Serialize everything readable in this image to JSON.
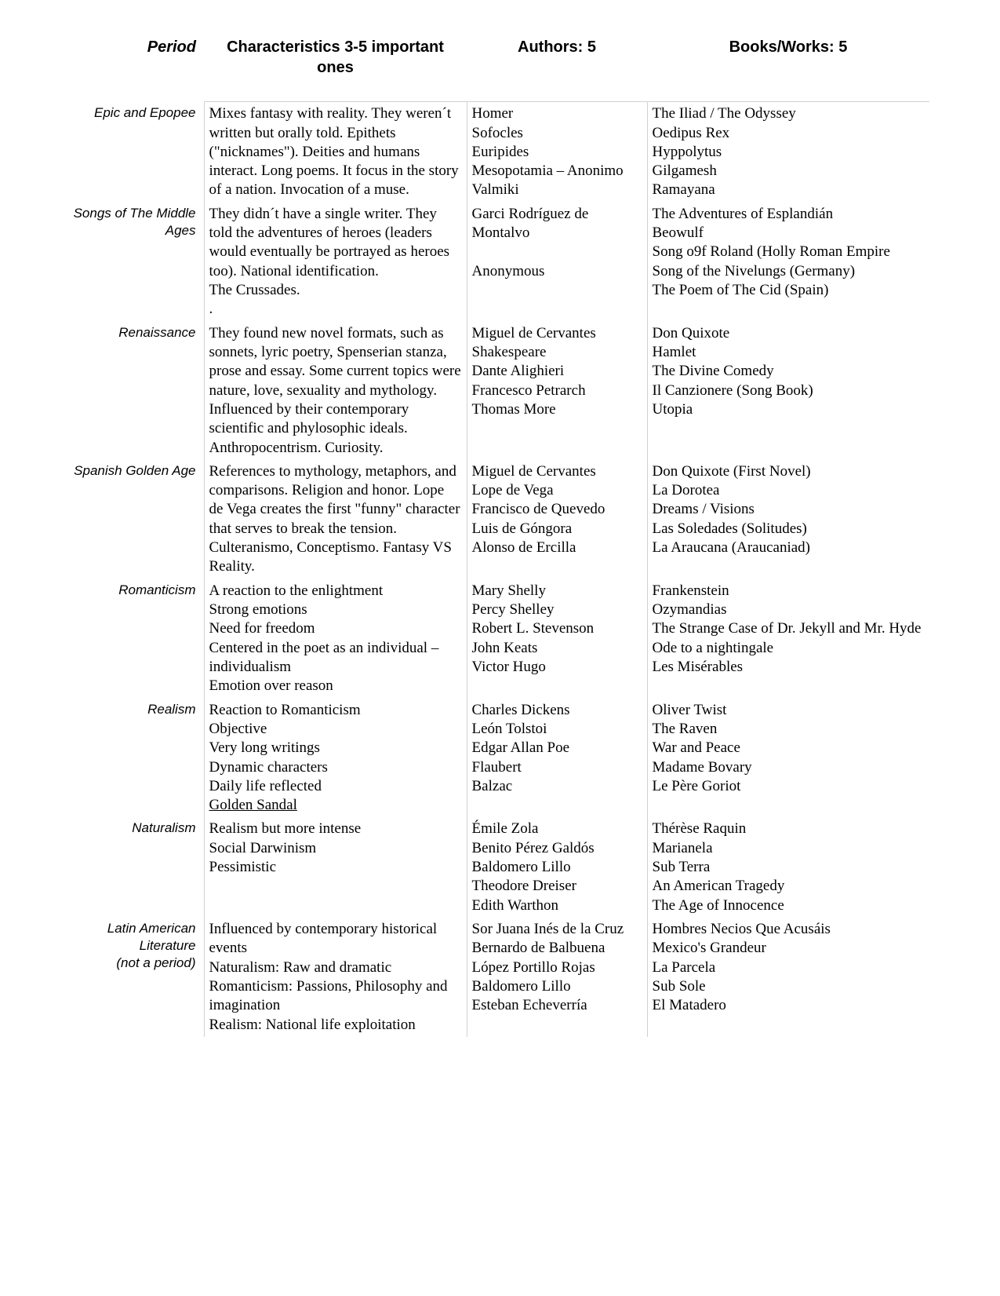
{
  "headers": {
    "period": "Period",
    "characteristics": "Characteristics 3-5 important ones",
    "authors": "Authors: 5",
    "works": "Books/Works: 5"
  },
  "rows": [
    {
      "period": "Epic and Epopee",
      "characteristics": [
        "Mixes fantasy with reality. They weren´t written but orally told. Epithets (\"nicknames\"). Deities and humans interact. Long poems. It focus in the story of a nation. Invocation of a muse."
      ],
      "authors": [
        "Homer",
        "Sofocles",
        "Euripides",
        "Mesopotamia – Anonimo",
        "Valmiki"
      ],
      "works": [
        "The Iliad / The Odyssey",
        "Oedipus Rex",
        "Hyppolytus",
        "Gilgamesh",
        "Ramayana"
      ]
    },
    {
      "period": "Songs of The Middle Ages",
      "characteristics": [
        "They didn´t have a single writer. They told the adventures of heroes (leaders would eventually be portrayed as heroes too). National identification.",
        "The Crussades.",
        "."
      ],
      "authors": [
        "Garci Rodríguez de Montalvo",
        "",
        "Anonymous"
      ],
      "works": [
        "The Adventures of Esplandián",
        "Beowulf",
        "Song o9f Roland (Holly Roman Empire",
        "Song of the Nivelungs (Germany)",
        "The Poem of The Cid (Spain)"
      ]
    },
    {
      "period": "Renaissance",
      "characteristics": [
        "They found new novel formats, such as sonnets, lyric poetry, Spenserian stanza, prose and essay. Some current topics were nature, love, sexuality and mythology. Influenced by their contemporary scientific and phylosophic ideals. Anthropocentrism. Curiosity."
      ],
      "authors": [
        "Miguel de Cervantes",
        "Shakespeare",
        "Dante Alighieri",
        "Francesco Petrarch",
        "Thomas More"
      ],
      "works": [
        "Don Quixote",
        "Hamlet",
        "The Divine Comedy",
        "Il Canzionere (Song Book)",
        "Utopia"
      ]
    },
    {
      "period": "Spanish Golden Age",
      "characteristics": [
        "References to mythology, metaphors, and comparisons. Religion and honor. Lope de Vega creates the first \"funny\" character that serves to break the tension. Culteranismo, Conceptismo. Fantasy VS Reality."
      ],
      "authors": [
        "Miguel de Cervantes",
        "Lope de Vega",
        "Francisco de Quevedo",
        "Luis de Góngora",
        "Alonso de Ercilla"
      ],
      "works": [
        "Don Quixote (First Novel)",
        "La Dorotea",
        "Dreams / Visions",
        "Las Soledades (Solitudes)",
        "La Araucana (Araucaniad)"
      ]
    },
    {
      "period": "Romanticism",
      "characteristics": [
        "A reaction to the enlightment",
        "Strong emotions",
        "Need for freedom",
        "Centered in the poet as an individual – individualism",
        "Emotion over reason"
      ],
      "authors": [
        "Mary Shelly",
        "Percy Shelley",
        "Robert L. Stevenson",
        "John Keats",
        "Victor Hugo"
      ],
      "works": [
        "Frankenstein",
        "Ozymandias",
        "The Strange Case of Dr. Jekyll and Mr. Hyde",
        "Ode to a nightingale",
        "Les Misérables"
      ]
    },
    {
      "period": "Realism",
      "characteristics": [
        "Reaction to Romanticism",
        "Objective",
        "Very long writings",
        "Dynamic characters",
        "Daily life reflected"
      ],
      "characteristics_underlined": [
        "Golden Sandal"
      ],
      "authors": [
        "Charles Dickens",
        "León Tolstoi",
        "Edgar Allan Poe",
        "Flaubert",
        "Balzac"
      ],
      "works": [
        " Oliver Twist",
        "The Raven",
        "War and Peace",
        "Madame Bovary",
        "Le Père Goriot"
      ]
    },
    {
      "period": "Naturalism",
      "characteristics": [
        "Realism but more intense",
        "Social Darwinism",
        "Pessimistic"
      ],
      "authors": [
        "Émile Zola",
        "Benito Pérez Galdós",
        "Baldomero Lillo",
        "Theodore Dreiser",
        "Edith Warthon"
      ],
      "works": [
        "Thérèse Raquin",
        "Marianela",
        "Sub Terra",
        "An American Tragedy",
        "The Age of Innocence"
      ]
    },
    {
      "period": "Latin American Literature\n(not a period)",
      "characteristics": [
        "Influenced by contemporary historical events",
        "Naturalism: Raw and dramatic",
        "Romanticism: Passions, Philosophy and imagination",
        "Realism: National life exploitation"
      ],
      "authors": [
        " Sor Juana Inés de la Cruz",
        "Bernardo de Balbuena",
        "López Portillo Rojas",
        "Baldomero Lillo",
        "Esteban Echeverría"
      ],
      "works": [
        "Hombres Necios Que Acusáis",
        "Mexico's Grandeur",
        "La Parcela",
        "Sub Sole",
        "El Matadero"
      ]
    }
  ],
  "style": {
    "background": "#ffffff",
    "text_color": "#000000",
    "border_color": "#d0d0d0",
    "header_font": "Verdana",
    "body_font": "Times New Roman",
    "header_fontsize_pt": 15,
    "body_fontsize_pt": 14
  }
}
